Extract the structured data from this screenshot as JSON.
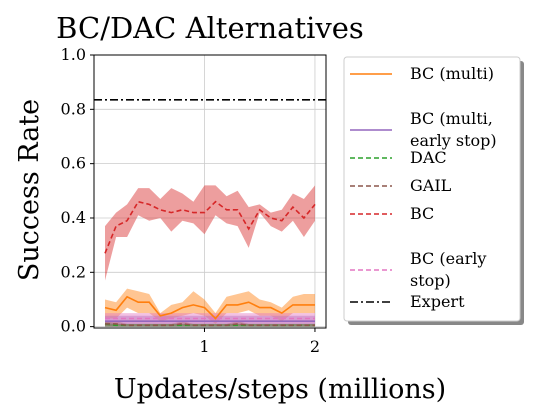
{
  "chart_data": {
    "type": "line",
    "title": "BC/DAC Alternatives",
    "xlabel": "Updates/steps (millions)",
    "ylabel": "Success Rate",
    "xlim": [
      0.0,
      2.1
    ],
    "ylim": [
      -0.005,
      1.0
    ],
    "xticks": [
      1,
      2
    ],
    "yticks": [
      0.0,
      0.2,
      0.4,
      0.6,
      0.8,
      1.0
    ],
    "ytick_labels": [
      "0.0",
      "0.2",
      "0.4",
      "0.6",
      "0.8",
      "1.0"
    ],
    "grid": true,
    "legend_position": "outside-right",
    "x": [
      0.1,
      0.2,
      0.3,
      0.4,
      0.5,
      0.6,
      0.7,
      0.8,
      0.9,
      1.0,
      1.1,
      1.2,
      1.3,
      1.4,
      1.5,
      1.6,
      1.7,
      1.8,
      1.9,
      2.0
    ],
    "series": [
      {
        "name": "BC (multi)",
        "color": "#ff7f0e",
        "style": "solid",
        "values": [
          0.07,
          0.06,
          0.11,
          0.09,
          0.09,
          0.04,
          0.05,
          0.07,
          0.08,
          0.07,
          0.03,
          0.08,
          0.08,
          0.09,
          0.07,
          0.07,
          0.05,
          0.08,
          0.08,
          0.08
        ],
        "lower": [
          0.03,
          0.03,
          0.07,
          0.05,
          0.05,
          0.02,
          0.03,
          0.04,
          0.05,
          0.04,
          0.01,
          0.05,
          0.05,
          0.06,
          0.04,
          0.04,
          0.02,
          0.05,
          0.05,
          0.05
        ],
        "upper": [
          0.1,
          0.09,
          0.14,
          0.13,
          0.12,
          0.05,
          0.08,
          0.09,
          0.13,
          0.1,
          0.05,
          0.11,
          0.12,
          0.13,
          0.1,
          0.09,
          0.07,
          0.11,
          0.12,
          0.12
        ]
      },
      {
        "name": "BC (multi, early stop)",
        "color": "#9467bd",
        "style": "solid",
        "values": [
          0.02,
          0.02,
          0.02,
          0.02,
          0.02,
          0.02,
          0.02,
          0.02,
          0.02,
          0.02,
          0.02,
          0.02,
          0.02,
          0.02,
          0.02,
          0.02,
          0.02,
          0.02,
          0.02,
          0.02
        ],
        "lower": [
          0.0,
          0.0,
          0.0,
          0.0,
          0.0,
          0.0,
          0.0,
          0.0,
          0.0,
          0.0,
          0.0,
          0.0,
          0.0,
          0.0,
          0.0,
          0.0,
          0.0,
          0.0,
          0.0,
          0.0
        ],
        "upper": [
          0.04,
          0.04,
          0.04,
          0.04,
          0.04,
          0.04,
          0.04,
          0.04,
          0.04,
          0.04,
          0.04,
          0.04,
          0.04,
          0.04,
          0.04,
          0.04,
          0.04,
          0.04,
          0.04,
          0.04
        ]
      },
      {
        "name": "DAC",
        "color": "#2ca02c",
        "style": "dashed",
        "values": [
          0.01,
          0.005,
          0.005,
          0.005,
          0.005,
          0.005,
          0.005,
          0.005,
          0.005,
          0.005,
          0.005,
          0.005,
          0.005,
          0.005,
          0.005,
          0.005,
          0.005,
          0.005,
          0.005,
          0.005
        ],
        "lower": [
          0.0,
          0.0,
          0.0,
          0.0,
          0.0,
          0.0,
          0.0,
          0.0,
          0.0,
          0.0,
          0.0,
          0.0,
          0.0,
          0.0,
          0.0,
          0.0,
          0.0,
          0.0,
          0.0,
          0.0
        ],
        "upper": [
          0.02,
          0.01,
          0.01,
          0.01,
          0.01,
          0.01,
          0.01,
          0.01,
          0.01,
          0.01,
          0.01,
          0.01,
          0.01,
          0.01,
          0.01,
          0.01,
          0.01,
          0.01,
          0.01,
          0.01
        ]
      },
      {
        "name": "GAIL",
        "color": "#8c564b",
        "style": "dashed",
        "values": [
          0.01,
          0.01,
          0.005,
          0.005,
          0.005,
          0.005,
          0.005,
          0.01,
          0.005,
          0.005,
          0.005,
          0.005,
          0.01,
          0.005,
          0.005,
          0.005,
          0.005,
          0.005,
          0.005,
          0.005
        ],
        "lower": [
          0.0,
          0.0,
          0.0,
          0.0,
          0.0,
          0.0,
          0.0,
          0.0,
          0.0,
          0.0,
          0.0,
          0.0,
          0.0,
          0.0,
          0.0,
          0.0,
          0.0,
          0.0,
          0.0,
          0.0
        ],
        "upper": [
          0.02,
          0.02,
          0.01,
          0.01,
          0.01,
          0.01,
          0.01,
          0.02,
          0.01,
          0.01,
          0.01,
          0.01,
          0.02,
          0.01,
          0.01,
          0.01,
          0.01,
          0.01,
          0.01,
          0.01
        ]
      },
      {
        "name": "BC",
        "color": "#d62728",
        "style": "dashed",
        "values": [
          0.27,
          0.37,
          0.39,
          0.46,
          0.45,
          0.43,
          0.42,
          0.43,
          0.42,
          0.42,
          0.46,
          0.43,
          0.43,
          0.36,
          0.43,
          0.4,
          0.39,
          0.44,
          0.4,
          0.45
        ],
        "lower": [
          0.17,
          0.33,
          0.33,
          0.41,
          0.39,
          0.4,
          0.35,
          0.39,
          0.38,
          0.34,
          0.41,
          0.38,
          0.37,
          0.29,
          0.42,
          0.37,
          0.35,
          0.39,
          0.33,
          0.39
        ],
        "upper": [
          0.37,
          0.42,
          0.45,
          0.51,
          0.51,
          0.47,
          0.51,
          0.49,
          0.46,
          0.52,
          0.52,
          0.48,
          0.5,
          0.44,
          0.45,
          0.42,
          0.43,
          0.49,
          0.47,
          0.52
        ]
      },
      {
        "name": "BC (early stop)",
        "color": "#e377c2",
        "style": "dashed",
        "values": [
          0.03,
          0.03,
          0.03,
          0.03,
          0.03,
          0.03,
          0.03,
          0.03,
          0.03,
          0.03,
          0.03,
          0.03,
          0.03,
          0.03,
          0.03,
          0.03,
          0.03,
          0.03,
          0.03,
          0.03
        ],
        "lower": [
          0.01,
          0.01,
          0.01,
          0.01,
          0.01,
          0.01,
          0.01,
          0.01,
          0.01,
          0.01,
          0.01,
          0.01,
          0.01,
          0.01,
          0.01,
          0.01,
          0.01,
          0.01,
          0.01,
          0.01
        ],
        "upper": [
          0.05,
          0.05,
          0.05,
          0.05,
          0.05,
          0.05,
          0.05,
          0.05,
          0.05,
          0.05,
          0.05,
          0.05,
          0.05,
          0.05,
          0.05,
          0.05,
          0.05,
          0.05,
          0.05,
          0.05
        ]
      },
      {
        "name": "Expert",
        "color": "#000000",
        "style": "dashdot",
        "constant": 0.835
      }
    ],
    "legend_lines": [
      [
        "BC (multi)"
      ],
      [
        "BC (multi,",
        "early stop)"
      ],
      [
        "DAC"
      ],
      [
        "GAIL"
      ],
      [
        "BC"
      ],
      [
        "BC (early",
        "stop)"
      ],
      [
        "Expert"
      ]
    ]
  }
}
